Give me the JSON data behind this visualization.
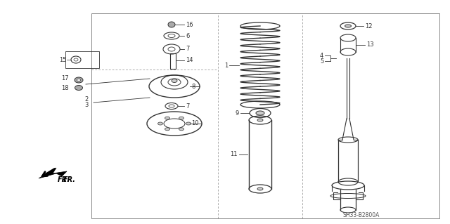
{
  "bg_color": "#ffffff",
  "line_color": "#333333",
  "ref_text": "SH33-B2800A"
}
